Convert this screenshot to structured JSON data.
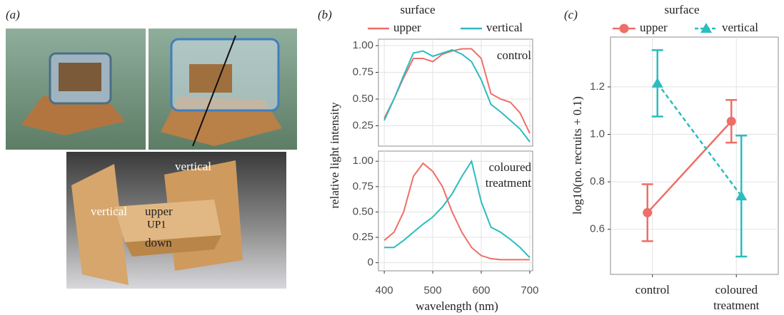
{
  "photo_panel": {
    "label": "(a)",
    "annotations": [
      "vertical",
      "vertical",
      "upper",
      "UP1",
      "down"
    ]
  },
  "chart_data": [
    {
      "type": "line",
      "panel_label": "(b)",
      "legend_title": "surface",
      "x_label": "wavelength (nm)",
      "y_label": "relative light intensity",
      "x": [
        400,
        420,
        440,
        460,
        480,
        500,
        520,
        540,
        560,
        580,
        600,
        620,
        640,
        660,
        680,
        700
      ],
      "xlim": [
        388,
        706
      ],
      "xticks": [
        400,
        500,
        600,
        700
      ],
      "grid": true,
      "series": [
        {
          "name": "upper",
          "color": "#ee6f68"
        },
        {
          "name": "vertical",
          "color": "#2bbcbf"
        }
      ],
      "facets": [
        {
          "label": "control",
          "ylim": [
            0.06,
            1.06
          ],
          "yticks": [
            0.25,
            {
              "value": 0.5,
              "label": "0.50"
            },
            0.75,
            {
              "value": 1,
              "label": "1.00"
            }
          ],
          "series": [
            {
              "values": [
                0.32,
                0.5,
                0.7,
                0.88,
                0.88,
                0.85,
                0.92,
                0.95,
                0.97,
                0.97,
                0.88,
                0.55,
                0.5,
                0.47,
                0.37,
                0.18
              ]
            },
            {
              "values": [
                0.3,
                0.5,
                0.72,
                0.93,
                0.95,
                0.9,
                0.93,
                0.96,
                0.92,
                0.85,
                0.68,
                0.45,
                0.38,
                0.3,
                0.22,
                0.1
              ]
            }
          ]
        },
        {
          "label": "coloured treatment",
          "ylim": [
            -0.08,
            1.1
          ],
          "yticks": [
            0,
            0.25,
            {
              "value": 0.5,
              "label": "0.50"
            },
            0.75,
            {
              "value": 1,
              "label": "1.00"
            }
          ],
          "series": [
            {
              "values": [
                0.22,
                0.3,
                0.5,
                0.85,
                0.98,
                0.9,
                0.75,
                0.5,
                0.3,
                0.15,
                0.07,
                0.04,
                0.03,
                0.03,
                0.03,
                0.03
              ]
            },
            {
              "values": [
                0.15,
                0.15,
                0.22,
                0.3,
                0.38,
                0.45,
                0.55,
                0.68,
                0.85,
                1.0,
                0.6,
                0.35,
                0.3,
                0.23,
                0.15,
                0.05
              ]
            }
          ]
        }
      ]
    },
    {
      "type": "pointrange",
      "panel_label": "(c)",
      "legend_title": "surface",
      "y_label": "log10(no. recruits + 0.1)",
      "categories": [
        "control",
        "coloured treatment"
      ],
      "ylim": [
        0.41,
        1.41
      ],
      "yticks": [
        0.6,
        0.8,
        {
          "value": 1,
          "label": "1.0"
        },
        1.2
      ],
      "grid": true,
      "series": [
        {
          "name": "upper",
          "color": "#ee6f68",
          "marker": "circle",
          "linestyle": "solid",
          "values": [
            0.67,
            1.055
          ],
          "errors": [
            0.12,
            0.09
          ]
        },
        {
          "name": "vertical",
          "color": "#2bbcbf",
          "marker": "triangle",
          "linestyle": "dashed",
          "values": [
            1.215,
            0.74
          ],
          "errors": [
            0.14,
            0.255
          ]
        }
      ]
    }
  ]
}
